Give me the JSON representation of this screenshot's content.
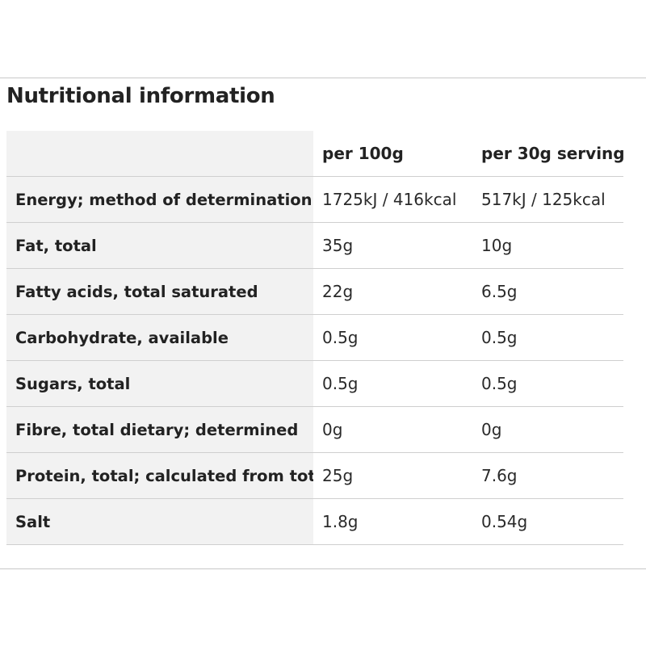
{
  "title": "Nutritional information",
  "table": {
    "headers": [
      "",
      "per 100g",
      "per 30g serving"
    ],
    "rows": [
      {
        "label": "Energy; method of determination",
        "per_100g": "1725kJ / 416kcal",
        "per_serving": "517kJ / 125kcal"
      },
      {
        "label": "Fat, total",
        "per_100g": "35g",
        "per_serving": "10g"
      },
      {
        "label": "Fatty acids, total saturated",
        "per_100g": "22g",
        "per_serving": "6.5g"
      },
      {
        "label": "Carbohydrate, available",
        "per_100g": "0.5g",
        "per_serving": "0.5g"
      },
      {
        "label": "Sugars, total",
        "per_100g": "0.5g",
        "per_serving": "0.5g"
      },
      {
        "label": "Fibre, total dietary; determined",
        "per_100g": "0g",
        "per_serving": "0g"
      },
      {
        "label": "Protein, total; calculated from total",
        "per_100g": "25g",
        "per_serving": "7.6g"
      },
      {
        "label": "Salt",
        "per_100g": "1.8g",
        "per_serving": "0.54g"
      }
    ]
  }
}
